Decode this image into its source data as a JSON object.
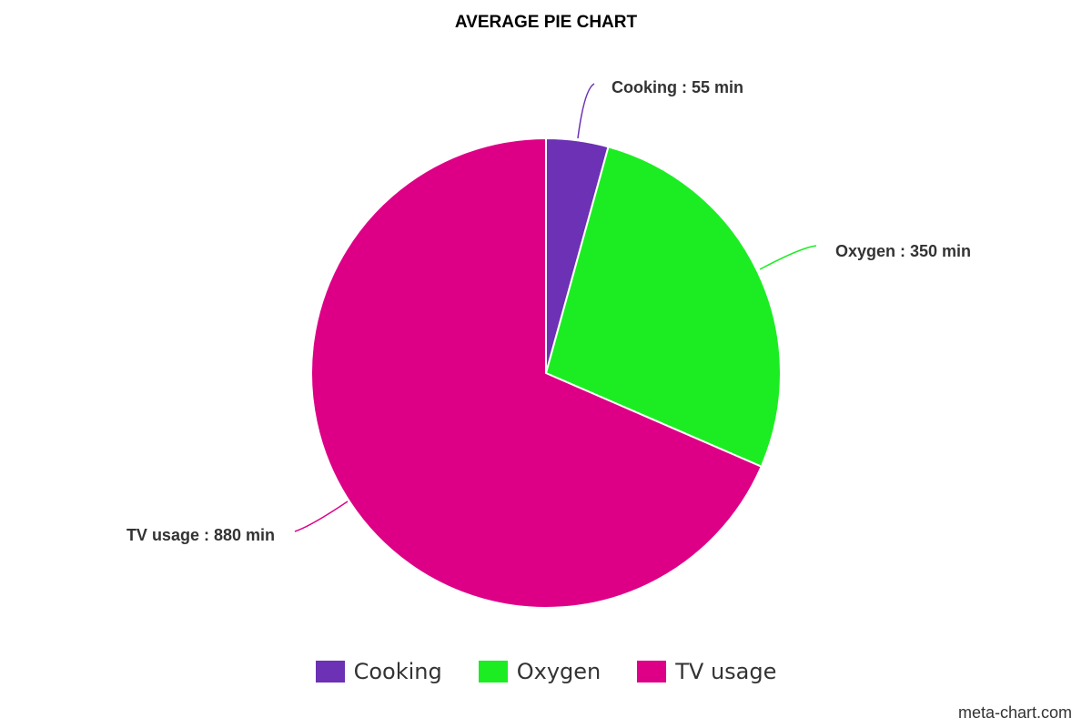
{
  "chart_data": {
    "type": "pie",
    "title": "AVERAGE PIE CHART",
    "unit": "min",
    "slices": [
      {
        "label": "Cooking",
        "value": 55,
        "color": "#6c31b4",
        "data_label": "Cooking : 55 min"
      },
      {
        "label": "Oxygen",
        "value": 350,
        "color": "#1ced23",
        "data_label": "Oxygen : 350 min"
      },
      {
        "label": "TV usage",
        "value": 880,
        "color": "#dd0087",
        "data_label": "TV usage : 880 min"
      }
    ],
    "legend": {
      "position": "bottom",
      "entries": [
        "Cooking",
        "Oxygen",
        "TV usage"
      ]
    },
    "start_angle": "top",
    "direction": "clockwise"
  },
  "credit": "meta-chart.com"
}
